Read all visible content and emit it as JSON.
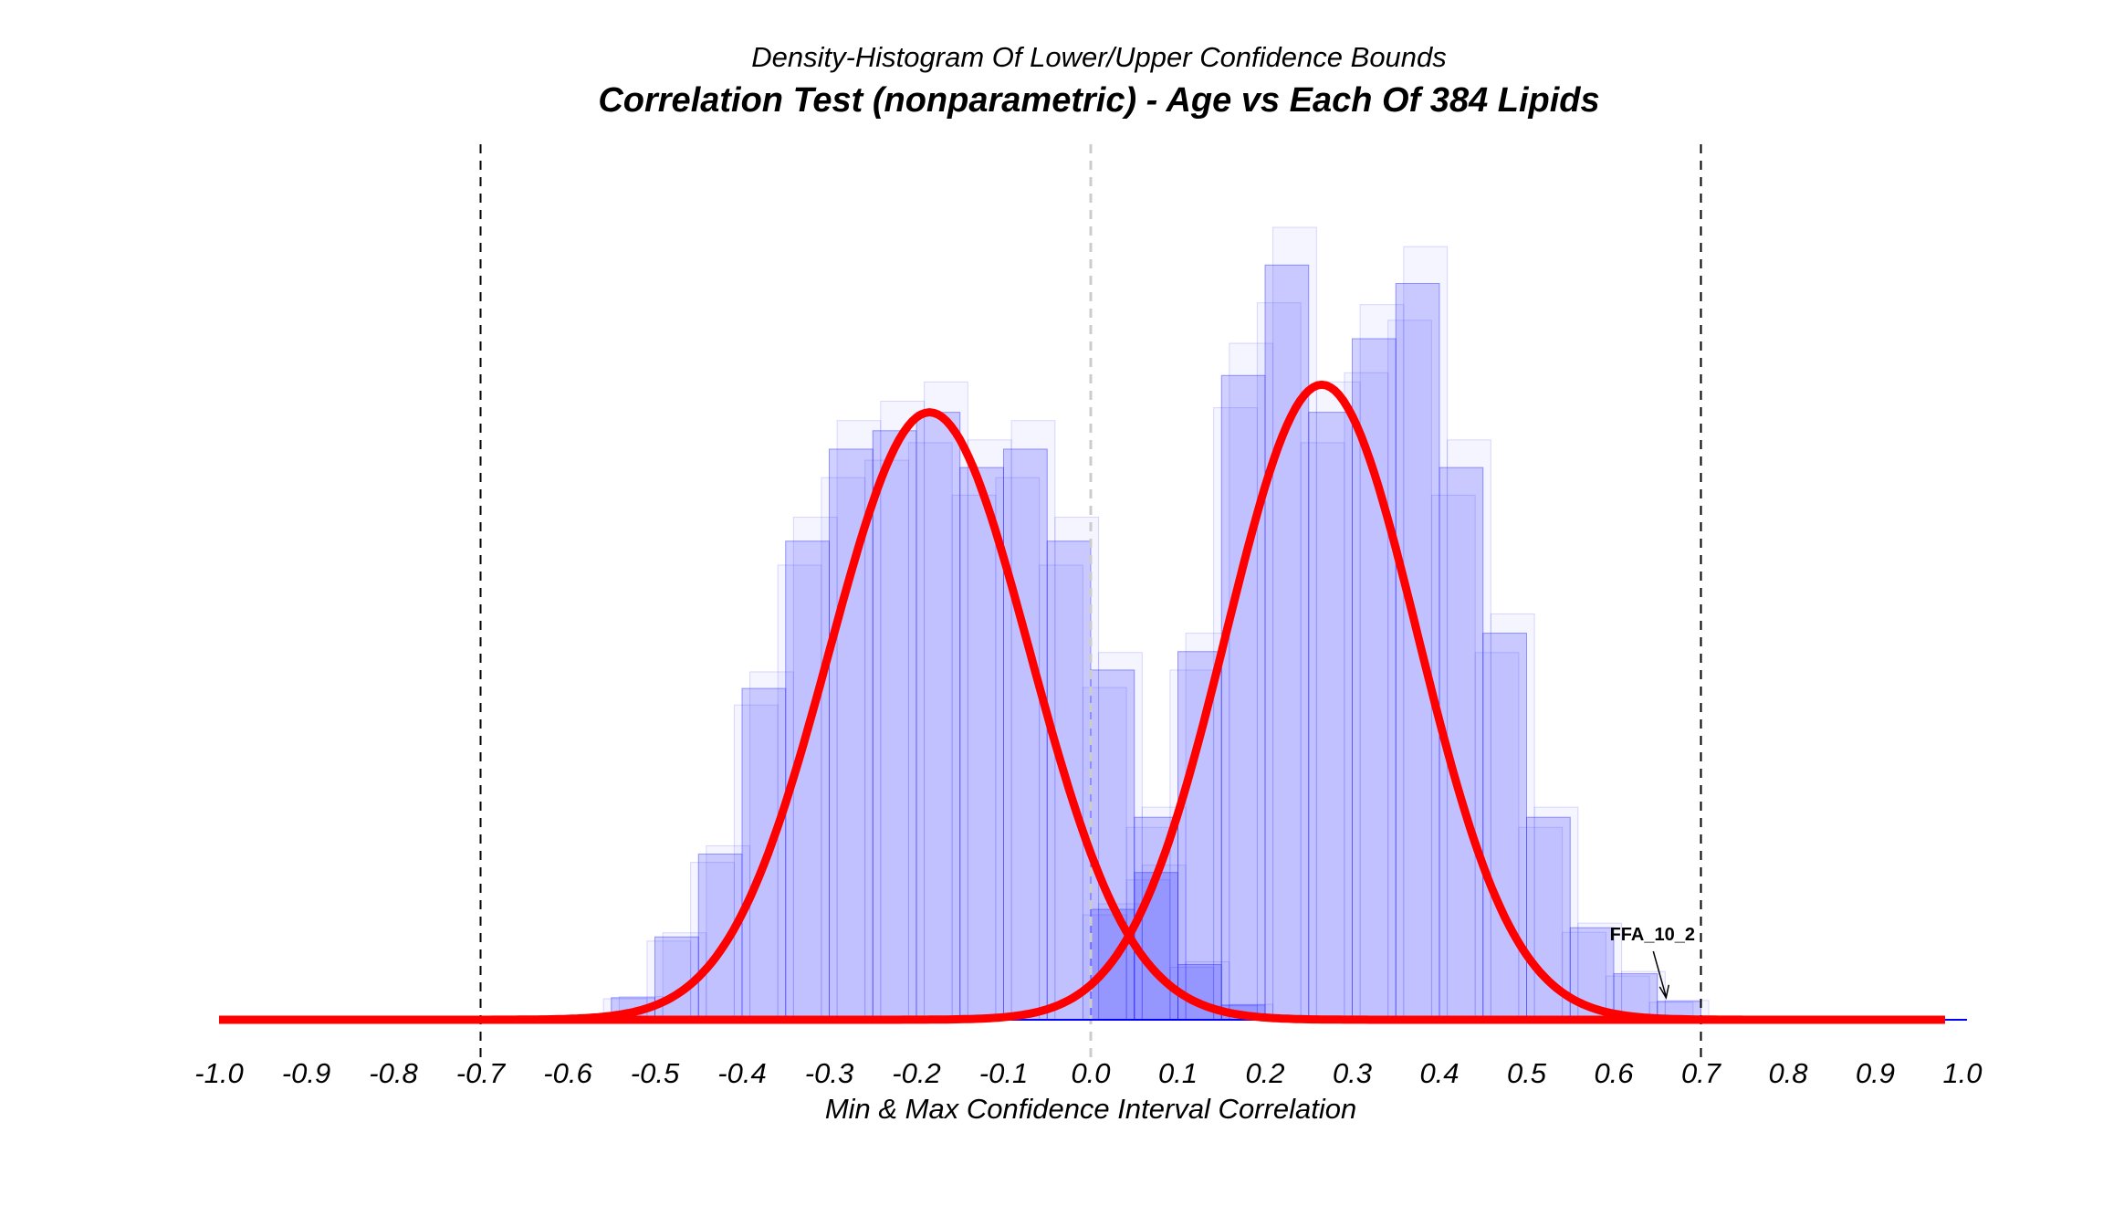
{
  "chart_data": {
    "type": "histogram",
    "subtitle": "Density-Histogram Of Lower/Upper Confidence Bounds",
    "title": "Correlation Test (nonparametric) - Age vs Each Of 384 Lipids",
    "xlabel": "Min & Max Confidence Interval Correlation",
    "ylabel": "",
    "xlim": [
      -1.0,
      1.0
    ],
    "x_ticks": [
      "-1.0",
      "-0.9",
      "-0.8",
      "-0.7",
      "-0.6",
      "-0.5",
      "-0.4",
      "-0.3",
      "-0.2",
      "-0.1",
      "0.0",
      "0.1",
      "0.2",
      "0.3",
      "0.4",
      "0.5",
      "0.6",
      "0.7",
      "0.8",
      "0.9",
      "1.0"
    ],
    "reference_lines": [
      {
        "x": -0.7,
        "style": "dashed",
        "color": "#000000"
      },
      {
        "x": 0.0,
        "style": "dashed",
        "color": "#cccccc"
      },
      {
        "x": 0.7,
        "style": "dashed",
        "color": "#000000"
      }
    ],
    "grid": false,
    "series": [
      {
        "role": "lower-bound",
        "histogram_bins": [
          -0.55,
          -0.5,
          -0.45,
          -0.4,
          -0.35,
          -0.3,
          -0.25,
          -0.2,
          -0.15,
          -0.1,
          -0.05,
          0.0,
          0.05,
          0.1,
          0.15
        ],
        "histogram_density": [
          0.12,
          0.45,
          0.9,
          1.8,
          2.6,
          3.1,
          3.2,
          3.3,
          3.0,
          3.1,
          2.6,
          1.9,
          0.8,
          0.3,
          0.08
        ],
        "density_curve": {
          "mean": -0.185,
          "sd": 0.115,
          "peak_density": 3.3
        },
        "color": "#ff0000"
      },
      {
        "role": "upper-bound",
        "histogram_bins": [
          0.0,
          0.05,
          0.1,
          0.15,
          0.2,
          0.25,
          0.3,
          0.35,
          0.4,
          0.45,
          0.5,
          0.55,
          0.6,
          0.65
        ],
        "histogram_density": [
          0.6,
          1.1,
          2.0,
          3.5,
          4.1,
          3.3,
          3.7,
          4.0,
          3.0,
          2.1,
          1.1,
          0.5,
          0.25,
          0.1
        ],
        "density_curve": {
          "mean": 0.265,
          "sd": 0.11,
          "peak_density": 3.45
        },
        "color": "#ff0000"
      }
    ],
    "histogram_color": "#3333ff",
    "annotations": [
      {
        "text": "FFA_10_2",
        "x": 0.66,
        "y": 0.1
      }
    ]
  }
}
